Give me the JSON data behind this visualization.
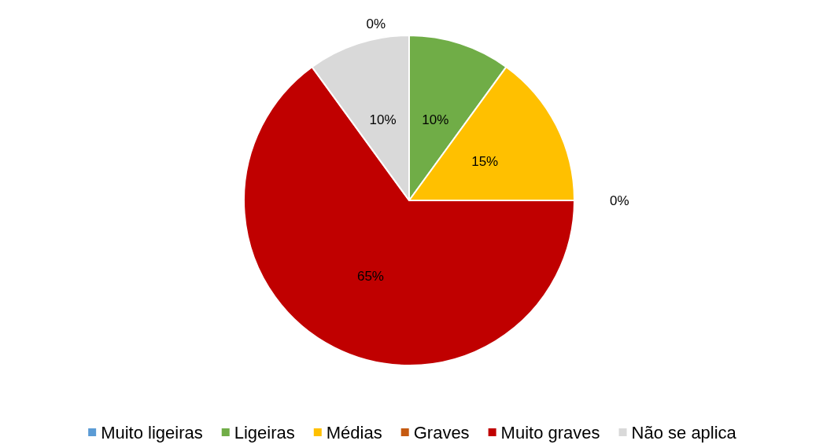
{
  "chart_data": {
    "type": "pie",
    "categories": [
      "Muito ligeiras",
      "Ligeiras",
      "Médias",
      "Graves",
      "Muito graves",
      "Não se aplica"
    ],
    "values": [
      0,
      10,
      15,
      0,
      65,
      10
    ],
    "value_labels": [
      "0%",
      "10%",
      "15%",
      "0%",
      "65%",
      "10%"
    ],
    "colors": [
      "#5b9bd5",
      "#70ad47",
      "#ffc000",
      "#c55a11",
      "#c00000",
      "#d9d9d9"
    ],
    "legend": "bottom"
  }
}
